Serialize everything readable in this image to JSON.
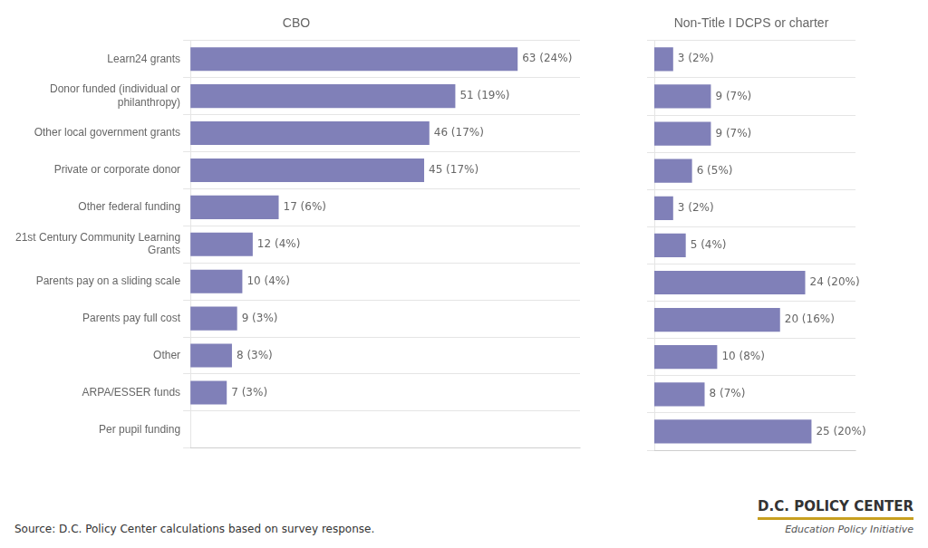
{
  "chart_data": [
    {
      "type": "bar",
      "orientation": "horizontal",
      "title": "CBO",
      "categories": [
        "Learn24 grants",
        "Donor funded (individual or\nphilanthropy)",
        "Other local government grants",
        "Private or corporate donor",
        "Other federal funding",
        "21st Century Community Learning\nGrants",
        "Parents pay on a sliding scale",
        "Parents pay full cost",
        "Other",
        "ARPA/ESSER funds",
        "Per pupil funding"
      ],
      "values": [
        63,
        51,
        46,
        45,
        17,
        12,
        10,
        9,
        8,
        7,
        0
      ],
      "value_labels": [
        "63 (24%)",
        "51 (19%)",
        "46 (17%)",
        "45 (17%)",
        "17 (6%)",
        "12 (4%)",
        "10 (4%)",
        "9 (3%)",
        "8 (3%)",
        "7 (3%)",
        null
      ],
      "data_labels": true,
      "color": "#8080b8",
      "xlim": [
        0,
        75
      ],
      "grid": true,
      "tick_labels": "y",
      "annotations": [
        "Source: D.C. Policy Center calculations based on survey response.",
        "D.C. POLICY CENTER",
        "Education Policy Initiative"
      ]
    },
    {
      "type": "bar",
      "orientation": "horizontal",
      "title": "Non-Title I DCPS or charter",
      "categories": [
        "Learn24 grants",
        "Donor funded (individual or\nphilanthropy)",
        "Other local government grants",
        "Private or corporate donor",
        "Other federal funding",
        "21st Century Community Learning\nGrants",
        "Parents pay on a sliding scale",
        "Parents pay full cost",
        "Other",
        "ARPA/ESSER funds",
        "Per pupil funding"
      ],
      "values": [
        3,
        9,
        9,
        6,
        3,
        5,
        24,
        20,
        10,
        8,
        25
      ],
      "value_labels": [
        "3 (2%)",
        "9 (7%)",
        "9 (7%)",
        "6 (5%)",
        "3 (2%)",
        "5 (4%)",
        "24 (20%)",
        "20 (16%)",
        "10 (8%)",
        "8 (7%)",
        "25 (20%)"
      ],
      "data_labels": true,
      "color": "#8080b8",
      "xlim": [
        0,
        32
      ],
      "grid": true,
      "tick_labels": false
    }
  ]
}
